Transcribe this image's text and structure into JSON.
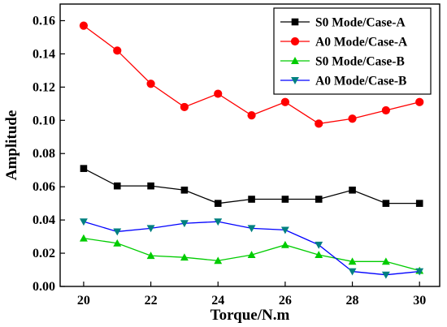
{
  "chart_data": {
    "type": "line",
    "title": "",
    "xlabel": "Torque/N.m",
    "ylabel": "Amplitude",
    "x": [
      20,
      21,
      22,
      23,
      24,
      25,
      26,
      27,
      28,
      29,
      30
    ],
    "xlim": [
      19.3,
      30.6
    ],
    "ylim": [
      0,
      0.17
    ],
    "xticks": [
      20,
      22,
      24,
      26,
      28,
      30
    ],
    "xtick_labels": [
      "20",
      "22",
      "24",
      "26",
      "28",
      "30"
    ],
    "yticks": [
      0,
      0.02,
      0.04,
      0.06,
      0.08,
      0.1,
      0.12,
      0.14,
      0.16
    ],
    "ytick_labels": [
      "0.00",
      "0.02",
      "0.04",
      "0.06",
      "0.08",
      "0.10",
      "0.12",
      "0.14",
      "0.16"
    ],
    "grid": false,
    "legend_position": "top-right",
    "series": [
      {
        "name": "S0 Mode/Case-A",
        "color": "#000000",
        "marker": "square",
        "values": [
          0.071,
          0.0605,
          0.0605,
          0.058,
          0.05,
          0.0525,
          0.0525,
          0.0525,
          0.058,
          0.05,
          0.05
        ]
      },
      {
        "name": "A0 Mode/Case-A",
        "color": "#ff0000",
        "marker": "circle",
        "values": [
          0.157,
          0.142,
          0.122,
          0.108,
          0.116,
          0.103,
          0.111,
          0.098,
          0.101,
          0.106,
          0.111
        ]
      },
      {
        "name": "S0 Mode/Case-B",
        "color": "#00cc00",
        "marker": "triangle-up",
        "values": [
          0.029,
          0.026,
          0.0185,
          0.0175,
          0.0155,
          0.019,
          0.025,
          0.019,
          0.015,
          0.015,
          0.0095
        ]
      },
      {
        "name": "A0 Mode/Case-B",
        "color": "#0000ff",
        "marker": "triangle-down",
        "marker_color": "#008080",
        "values": [
          0.039,
          0.033,
          0.035,
          0.038,
          0.039,
          0.035,
          0.034,
          0.025,
          0.009,
          0.007,
          0.009
        ]
      }
    ]
  }
}
